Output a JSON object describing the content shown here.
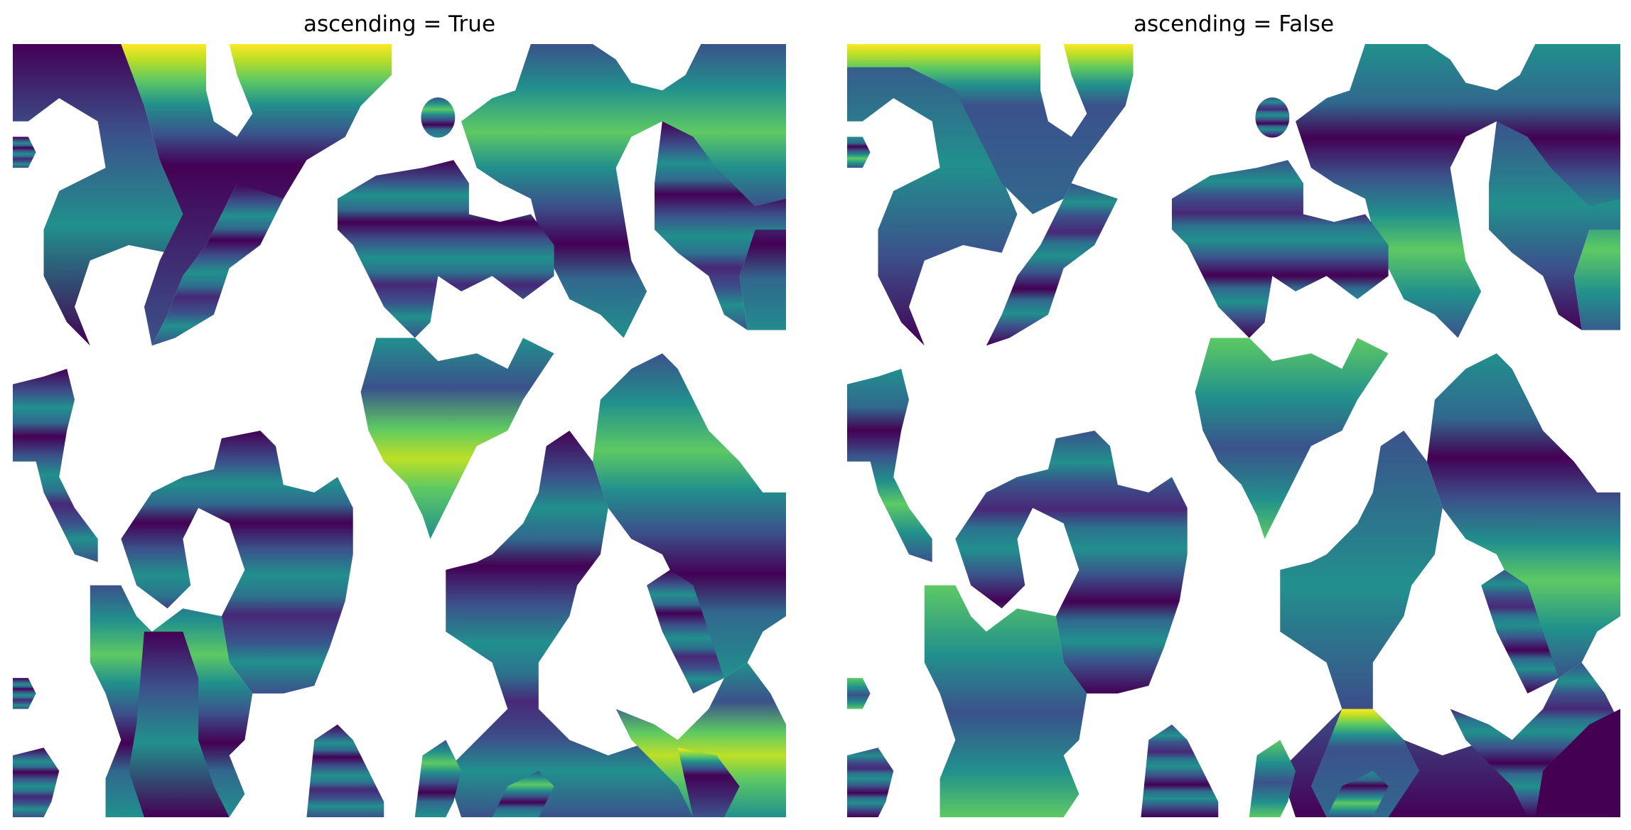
{
  "figure": {
    "panels": [
      {
        "title": "ascending = True"
      },
      {
        "title": "ascending = False"
      }
    ],
    "colormap": [
      "#440154",
      "#3b528b",
      "#21908d",
      "#5dc963",
      "#fde725"
    ],
    "background": "#ffffff"
  }
}
